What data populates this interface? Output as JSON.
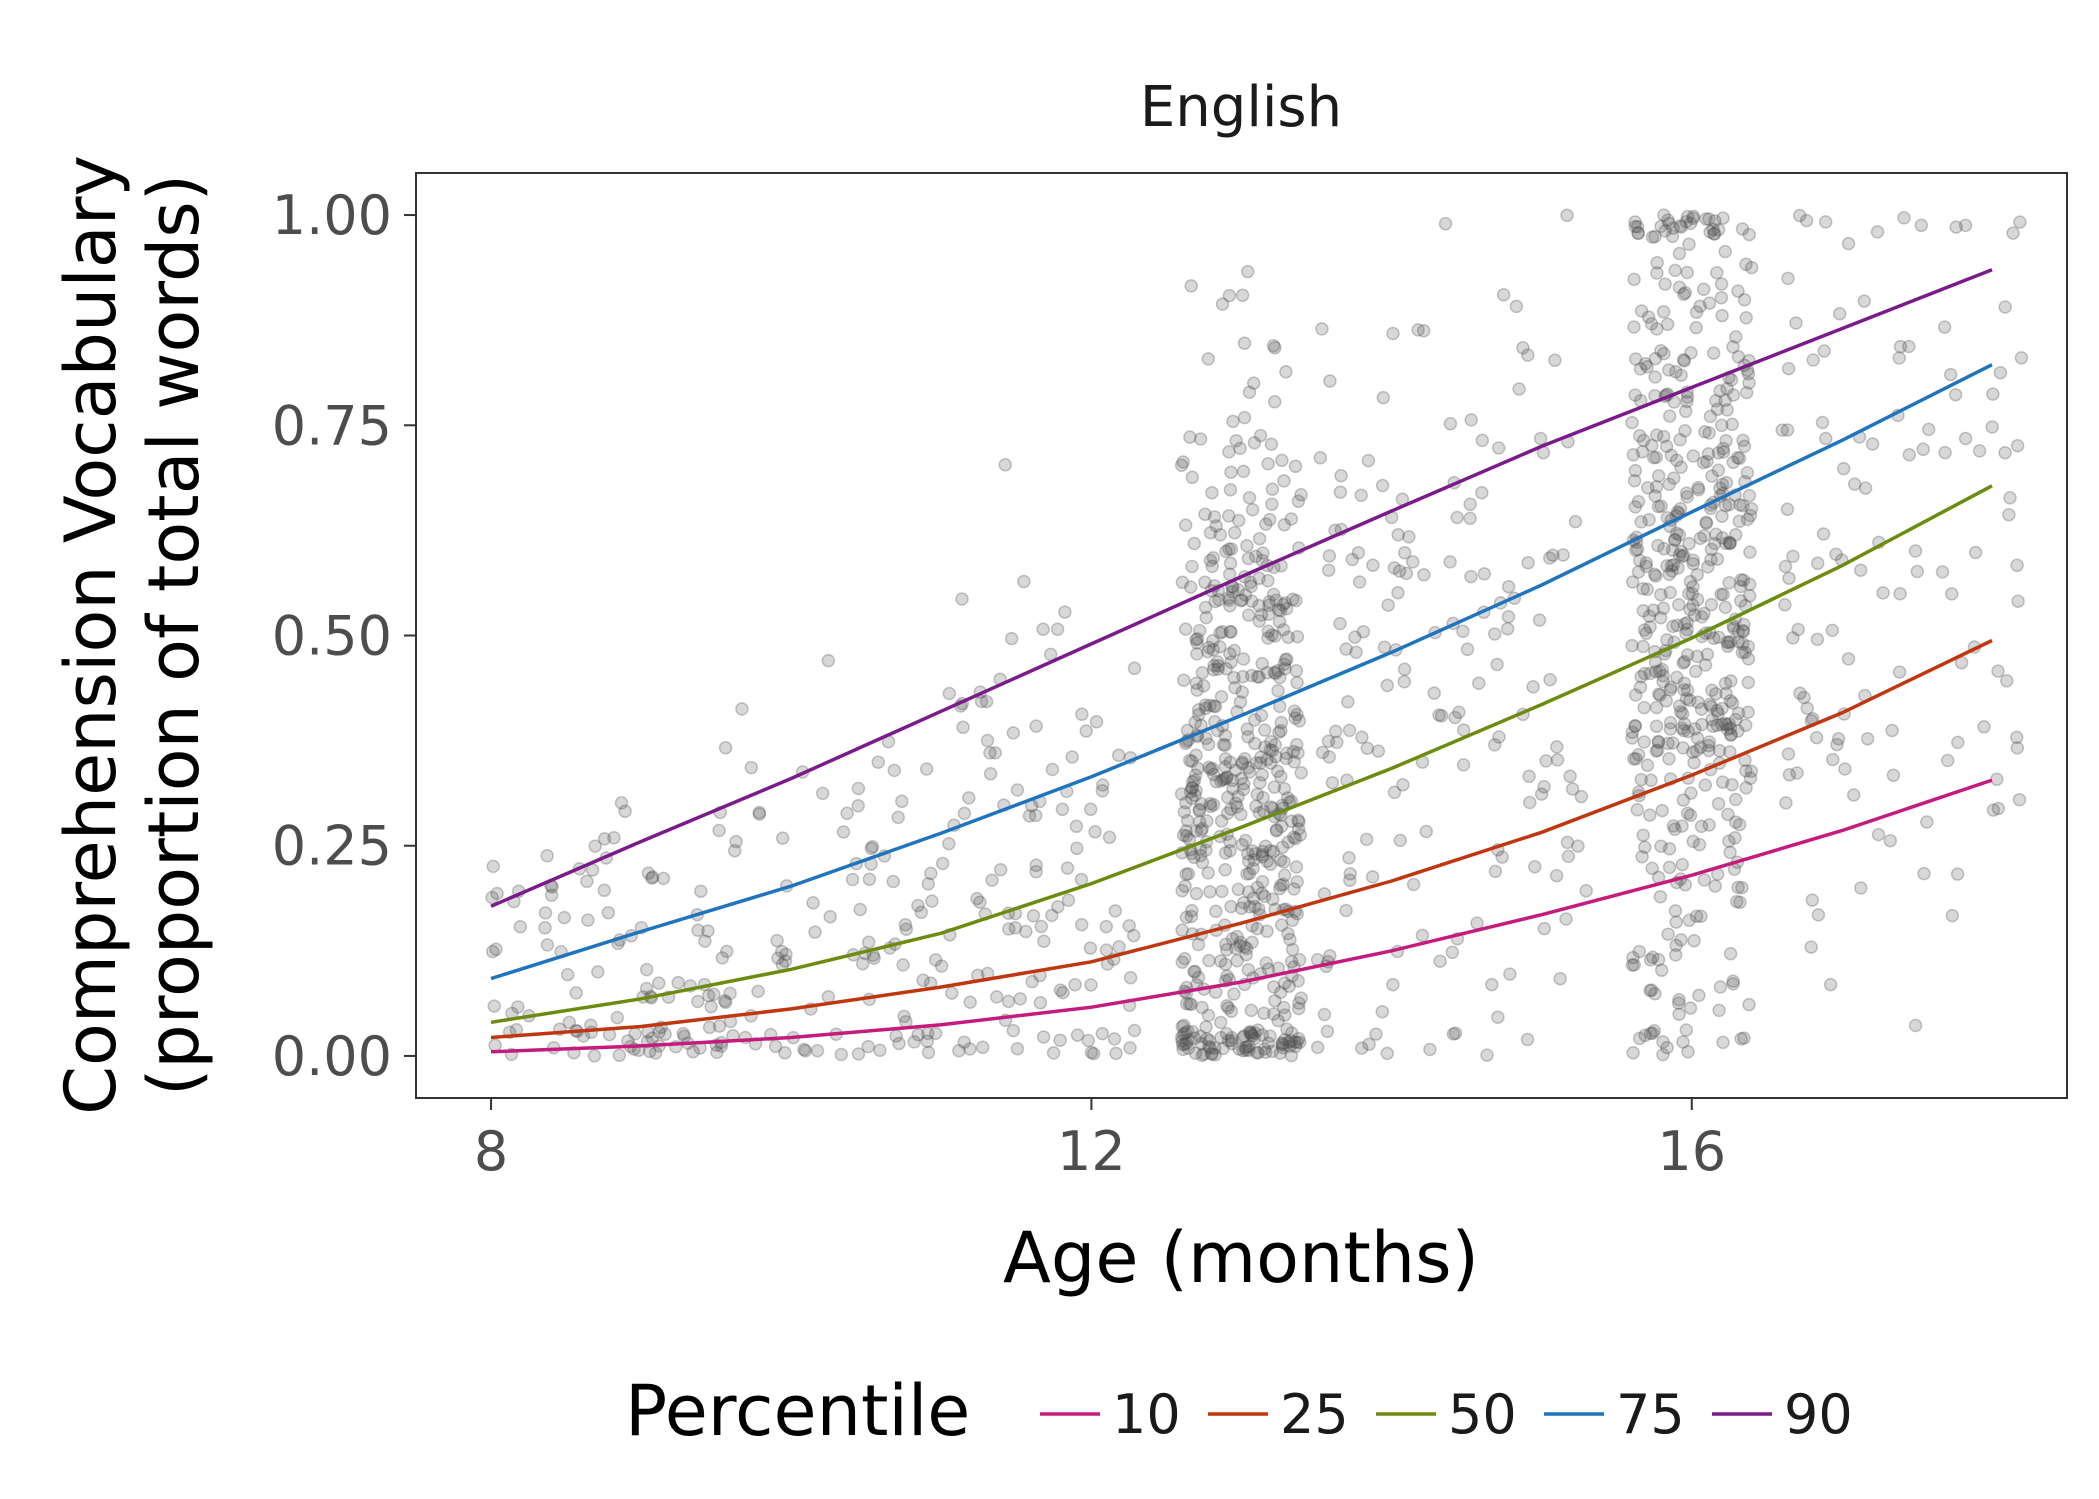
{
  "chart_data": {
    "type": "line",
    "title": "English",
    "xlabel": "Age (months)",
    "ylabel_line1": "Comprehension Vocabulary",
    "ylabel_line2": "(proportion of total words)",
    "xlim": [
      7.5,
      18.5
    ],
    "ylim": [
      -0.05,
      1.05
    ],
    "x_ticks": [
      8,
      12,
      16
    ],
    "x_tick_labels": [
      "8",
      "12",
      "16"
    ],
    "y_ticks": [
      0,
      0.25,
      0.5,
      0.75,
      1.0
    ],
    "y_tick_labels": [
      "0.00",
      "0.25",
      "0.50",
      "0.75",
      "1.00"
    ],
    "grid": false,
    "legend": {
      "title": "Percentile",
      "position": "bottom"
    },
    "x": [
      8,
      9,
      10,
      11,
      12,
      13,
      14,
      15,
      16,
      17,
      18
    ],
    "series": [
      {
        "name": "10",
        "color": "#c51b7d",
        "values": [
          0.005,
          0.012,
          0.022,
          0.037,
          0.058,
          0.088,
          0.125,
          0.168,
          0.215,
          0.268,
          0.328
        ]
      },
      {
        "name": "25",
        "color": "#c0360f",
        "values": [
          0.022,
          0.035,
          0.056,
          0.082,
          0.112,
          0.158,
          0.208,
          0.266,
          0.334,
          0.408,
          0.494
        ]
      },
      {
        "name": "50",
        "color": "#6b8c0e",
        "values": [
          0.04,
          0.068,
          0.103,
          0.146,
          0.205,
          0.272,
          0.342,
          0.418,
          0.497,
          0.583,
          0.678
        ]
      },
      {
        "name": "75",
        "color": "#1f74c0",
        "values": [
          0.092,
          0.148,
          0.202,
          0.265,
          0.332,
          0.405,
          0.48,
          0.56,
          0.647,
          0.732,
          0.822
        ]
      },
      {
        "name": "90",
        "color": "#7b1a8a",
        "values": [
          0.178,
          0.255,
          0.33,
          0.41,
          0.49,
          0.57,
          0.648,
          0.725,
          0.795,
          0.865,
          0.935
        ]
      }
    ],
    "scatter": {
      "color": "#4d4d4d",
      "opacity": 0.2,
      "groups": [
        {
          "x_center": 8.8,
          "x_spread": 0.8,
          "count": 110,
          "y_center": 0.09,
          "y_spread": 0.12
        },
        {
          "x_center": 10.3,
          "x_spread": 0.8,
          "count": 100,
          "y_center": 0.14,
          "y_spread": 0.14
        },
        {
          "x_center": 11.7,
          "x_spread": 0.6,
          "count": 110,
          "y_center": 0.21,
          "y_spread": 0.17
        },
        {
          "x_center": 13.0,
          "x_spread": 0.4,
          "count": 560,
          "y_center": 0.3,
          "y_spread": 0.24
        },
        {
          "x_center": 14.4,
          "x_spread": 0.9,
          "count": 170,
          "y_center": 0.4,
          "y_spread": 0.26
        },
        {
          "x_center": 16.0,
          "x_spread": 0.4,
          "count": 520,
          "y_center": 0.55,
          "y_spread": 0.27
        },
        {
          "x_center": 17.4,
          "x_spread": 0.8,
          "count": 120,
          "y_center": 0.58,
          "y_spread": 0.27
        }
      ]
    }
  }
}
